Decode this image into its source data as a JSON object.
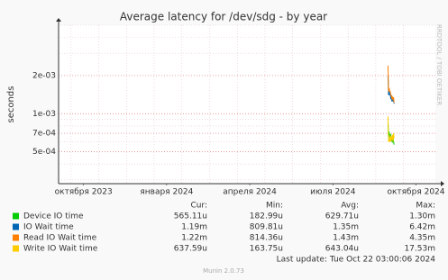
{
  "chart_data": {
    "type": "line",
    "title": "Average latency for /dev/sdg - by year",
    "y_label": "seconds",
    "log_scale_y": true,
    "grid": true,
    "xlim": [
      -0.9,
      12.7
    ],
    "xticks": [
      {
        "value": 0,
        "label": "октября 2023"
      },
      {
        "value": 3,
        "label": "января 2024"
      },
      {
        "value": 6,
        "label": "апреля 2024"
      },
      {
        "value": 9,
        "label": "июля 2024"
      },
      {
        "value": 12,
        "label": "октября 2024"
      }
    ],
    "xgrid": [
      -0.45,
      0.55,
      1.55,
      2.55,
      3.55,
      4.55,
      5.55,
      6.55,
      7.55,
      8.55,
      9.55,
      10.55,
      11.55
    ],
    "ylim": [
      0.00028,
      0.005
    ],
    "yticks": [
      {
        "value": 0.0005,
        "label": "5e-04"
      },
      {
        "value": 0.0007,
        "label": "7e-04"
      },
      {
        "value": 0.001,
        "label": "1e-03"
      },
      {
        "value": 0.002,
        "label": "2e-03"
      }
    ],
    "ygrid": [
      0.0003,
      0.0004,
      0.0006,
      0.0008,
      0.0009,
      0.003,
      0.004,
      0.005
    ],
    "table_headers": [
      "Cur:",
      "Min:",
      "Avg:",
      "Max:"
    ],
    "series": [
      {
        "name": "Device IO time",
        "color": "#00cc00",
        "x": [
          10.99,
          11.01,
          11.03,
          11.05,
          11.07,
          11.09,
          11.11,
          11.13,
          11.15,
          11.17,
          11.19,
          11.21
        ],
        "values": [
          0.00085,
          0.00063,
          0.00072,
          0.00068,
          0.00062,
          0.00069,
          0.00061,
          0.00064,
          0.00059,
          0.00066,
          0.0006,
          0.00057
        ],
        "stats": [
          "565.11u",
          "182.99u",
          "629.71u",
          "1.30m"
        ]
      },
      {
        "name": "IO Wait time",
        "color": "#0066b3",
        "x": [
          10.99,
          11.01,
          11.03,
          11.05,
          11.07,
          11.09,
          11.11,
          11.13,
          11.15,
          11.17,
          11.19,
          11.21
        ],
        "values": [
          0.002,
          0.0014,
          0.0015,
          0.0014,
          0.00145,
          0.0013,
          0.0014,
          0.00125,
          0.0013,
          0.00125,
          0.0013,
          0.0012
        ],
        "stats": [
          "1.19m",
          "809.81u",
          "1.35m",
          "6.42m"
        ]
      },
      {
        "name": "Read IO Wait time",
        "color": "#ff8000",
        "x": [
          10.99,
          11.01,
          11.03,
          11.05,
          11.07,
          11.09,
          11.11,
          11.13,
          11.15,
          11.17,
          11.19,
          11.21
        ],
        "values": [
          0.0024,
          0.0015,
          0.0016,
          0.0015,
          0.0015,
          0.0014,
          0.0014,
          0.0013,
          0.00135,
          0.0013,
          0.00135,
          0.00122
        ],
        "stats": [
          "1.22m",
          "814.36u",
          "1.43m",
          "4.35m"
        ]
      },
      {
        "name": "Write IO Wait time",
        "color": "#ffcc00",
        "x": [
          10.99,
          11.01,
          11.03,
          11.05,
          11.07,
          11.09,
          11.11,
          11.13,
          11.15,
          11.17,
          11.19,
          11.21
        ],
        "values": [
          0.00095,
          0.0006,
          0.00062,
          0.0006,
          0.00068,
          0.0006,
          0.00066,
          0.00062,
          0.00068,
          0.0006,
          0.0007,
          0.00064
        ],
        "stats": [
          "637.59u",
          "163.75u",
          "643.04u",
          "17.53m"
        ]
      }
    ],
    "last_update": "Last update: Tue Oct 22 03:00:06 2024",
    "footer": "Munin 2.0.73",
    "watermark": "RRDTOOL / TOBI OETIKER"
  }
}
